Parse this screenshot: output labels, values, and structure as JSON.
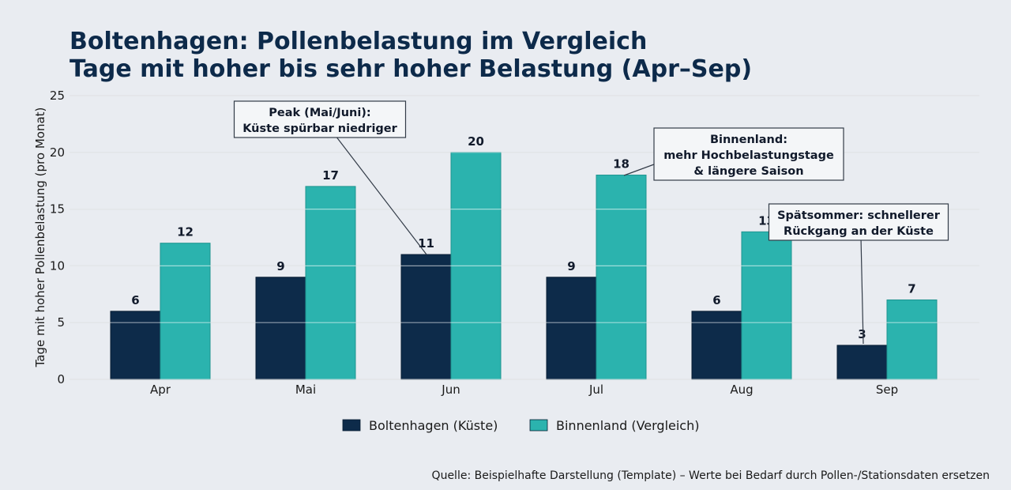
{
  "chart_data": {
    "type": "bar",
    "title": "Boltenhagen: Pollenbelastung im Vergleich",
    "subtitle": "Tage mit hoher bis sehr hoher Belastung (Apr–Sep)",
    "xlabel": "",
    "ylabel": "Tage mit hoher Pollenbelastung (pro Monat)",
    "ylim": [
      0,
      25
    ],
    "yticks": [
      0,
      5,
      10,
      15,
      20,
      25
    ],
    "grid": true,
    "legend_position": "bottom",
    "categories": [
      "Apr",
      "Mai",
      "Jun",
      "Jul",
      "Aug",
      "Sep"
    ],
    "series": [
      {
        "name": "Boltenhagen (Küste)",
        "values": [
          6,
          9,
          11,
          9,
          6,
          3
        ],
        "color": "#0d2b4a"
      },
      {
        "name": "Binnenland (Vergleich)",
        "values": [
          12,
          17,
          20,
          18,
          13,
          7
        ],
        "color": "#2bb3ae"
      }
    ],
    "annotations": [
      {
        "lines": [
          "Peak (Mai/Juni):",
          "Küste spürbar niedriger"
        ],
        "target": {
          "category": "Jun",
          "series": 0,
          "value": 11
        }
      },
      {
        "lines": [
          "Binnenland:",
          "mehr Hochbelastungstage",
          "& längere Saison"
        ],
        "target": {
          "category": "Jul",
          "series": 1,
          "value": 18
        }
      },
      {
        "lines": [
          "Spätsommer: schnellerer",
          "Rückgang an der Küste"
        ],
        "target": {
          "category": "Sep",
          "series": 0,
          "value": 3
        }
      }
    ],
    "source": "Quelle: Beispielhafte Darstellung (Template) – Werte bei Bedarf durch Pollen-/Stationsdaten ersetzen"
  }
}
